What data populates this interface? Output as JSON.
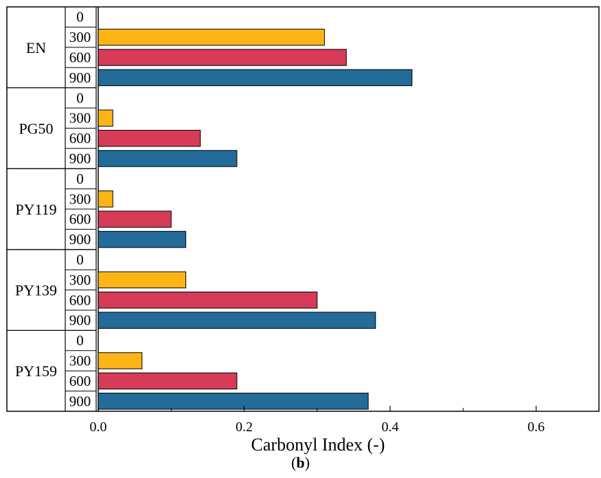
{
  "chart_data": {
    "type": "bar",
    "orientation": "horizontal",
    "groups": [
      "EN",
      "PG50",
      "PY119",
      "PY139",
      "PY159"
    ],
    "categories": [
      "0",
      "300",
      "600",
      "900"
    ],
    "values": {
      "EN": [
        0,
        0.31,
        0.34,
        0.43
      ],
      "PG50": [
        0,
        0.02,
        0.14,
        0.19
      ],
      "PY119": [
        0,
        0.02,
        0.1,
        0.12
      ],
      "PY139": [
        0,
        0.12,
        0.3,
        0.38
      ],
      "PY159": [
        0,
        0.06,
        0.19,
        0.37
      ]
    },
    "xlabel": "Carbonyl Index (-)",
    "xlim": [
      -0.046,
      0.69
    ],
    "xticks": [
      0.0,
      0.2,
      0.4,
      0.6
    ],
    "xtick_labels": [
      "0.0",
      "0.2",
      "0.4",
      "0.6"
    ],
    "colors": {
      "0": "#ffffff",
      "300": "#fdb515",
      "600": "#d63b58",
      "900": "#236b99"
    },
    "grid": false,
    "legend": "none"
  },
  "caption": {
    "open": "(",
    "letter": "b",
    "close": ")"
  }
}
